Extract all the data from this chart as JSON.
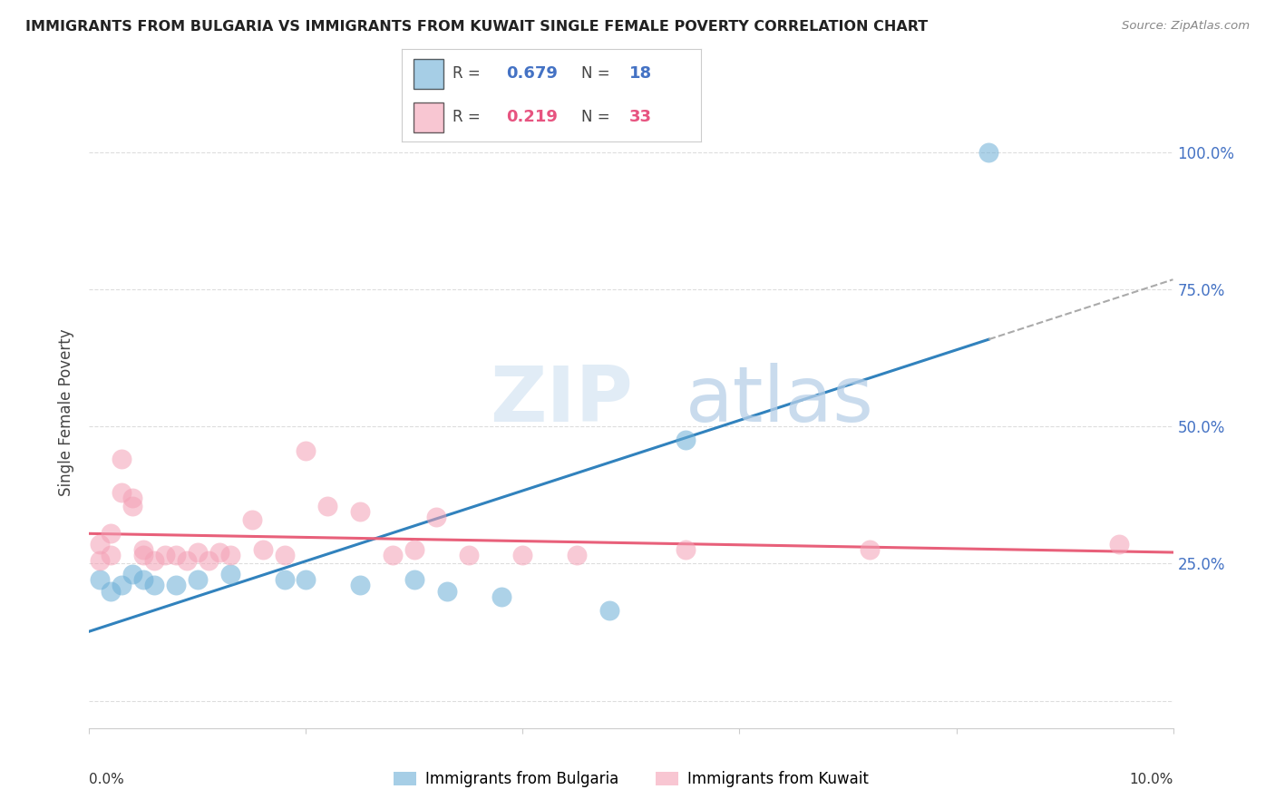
{
  "title": "IMMIGRANTS FROM BULGARIA VS IMMIGRANTS FROM KUWAIT SINGLE FEMALE POVERTY CORRELATION CHART",
  "source": "Source: ZipAtlas.com",
  "ylabel": "Single Female Poverty",
  "x_range": [
    0.0,
    0.1
  ],
  "y_range": [
    -0.05,
    1.1
  ],
  "legend_r_bulgaria": "0.679",
  "legend_n_bulgaria": "18",
  "legend_r_kuwait": "0.219",
  "legend_n_kuwait": "33",
  "color_bulgaria": "#6baed6",
  "color_kuwait": "#f4a0b5",
  "color_blue_line": "#3182bd",
  "color_pink_line": "#e8607a",
  "color_dashed": "#aaaaaa",
  "bg_color": "#ffffff",
  "grid_color": "#dddddd",
  "bulgaria_x": [
    0.001,
    0.002,
    0.003,
    0.004,
    0.005,
    0.006,
    0.008,
    0.01,
    0.013,
    0.018,
    0.02,
    0.025,
    0.03,
    0.033,
    0.038,
    0.048,
    0.055,
    0.083
  ],
  "bulgaria_y": [
    0.22,
    0.2,
    0.21,
    0.23,
    0.22,
    0.21,
    0.21,
    0.22,
    0.23,
    0.22,
    0.22,
    0.21,
    0.22,
    0.2,
    0.19,
    0.165,
    0.475,
    1.0
  ],
  "kuwait_x": [
    0.001,
    0.001,
    0.002,
    0.002,
    0.003,
    0.003,
    0.004,
    0.004,
    0.005,
    0.005,
    0.006,
    0.007,
    0.008,
    0.009,
    0.01,
    0.011,
    0.012,
    0.013,
    0.015,
    0.016,
    0.018,
    0.02,
    0.022,
    0.025,
    0.028,
    0.03,
    0.032,
    0.035,
    0.04,
    0.045,
    0.055,
    0.072,
    0.095
  ],
  "kuwait_y": [
    0.285,
    0.255,
    0.305,
    0.265,
    0.44,
    0.38,
    0.37,
    0.355,
    0.275,
    0.265,
    0.255,
    0.265,
    0.265,
    0.255,
    0.27,
    0.255,
    0.27,
    0.265,
    0.33,
    0.275,
    0.265,
    0.455,
    0.355,
    0.345,
    0.265,
    0.275,
    0.335,
    0.265,
    0.265,
    0.265,
    0.275,
    0.275,
    0.285
  ],
  "watermark_zip": "ZIP",
  "watermark_atlas": "atlas",
  "y_ticks": [
    0.0,
    0.25,
    0.5,
    0.75,
    1.0
  ],
  "y_tick_labels_right": [
    "",
    "25.0%",
    "50.0%",
    "75.0%",
    "100.0%"
  ]
}
